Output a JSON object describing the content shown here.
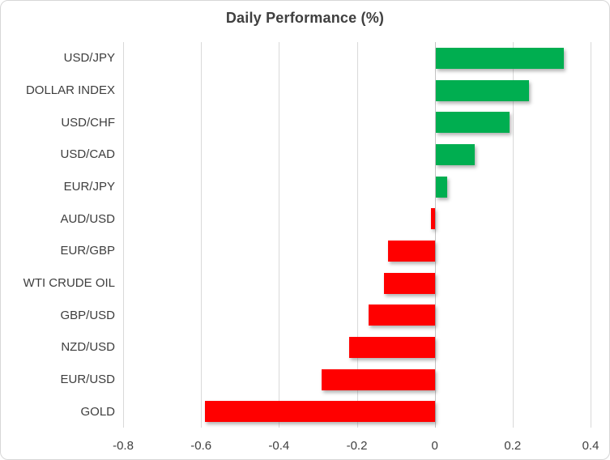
{
  "title": "Daily Performance (%)",
  "colors": {
    "positive_bar": "#00ae50",
    "negative_bar": "#ff0000",
    "gridline": "#d9d9d9",
    "zero_line": "#c3c3c3",
    "text": "#3f3f3f",
    "border": "#d7d7d7"
  },
  "chart_data": {
    "type": "bar",
    "orientation": "horizontal",
    "title": "Daily Performance (%)",
    "xlabel": "",
    "ylabel": "",
    "categories": [
      "USD/JPY",
      "DOLLAR INDEX",
      "USD/CHF",
      "USD/CAD",
      "EUR/JPY",
      "AUD/USD",
      "EUR/GBP",
      "WTI CRUDE OIL",
      "GBP/USD",
      "NZD/USD",
      "EUR/USD",
      "GOLD"
    ],
    "values": [
      0.33,
      0.24,
      0.19,
      0.1,
      0.03,
      -0.01,
      -0.12,
      -0.13,
      -0.17,
      -0.22,
      -0.29,
      -0.59
    ],
    "xlim": [
      -0.8,
      0.4
    ],
    "xticks": [
      -0.8,
      -0.6,
      -0.4,
      -0.2,
      0,
      0.2,
      0.4
    ],
    "xtick_labels": [
      "-0.8",
      "-0.6",
      "-0.4",
      "-0.2",
      "0",
      "0.2",
      "0.4"
    ],
    "grid": "vertical",
    "legend": "none"
  }
}
